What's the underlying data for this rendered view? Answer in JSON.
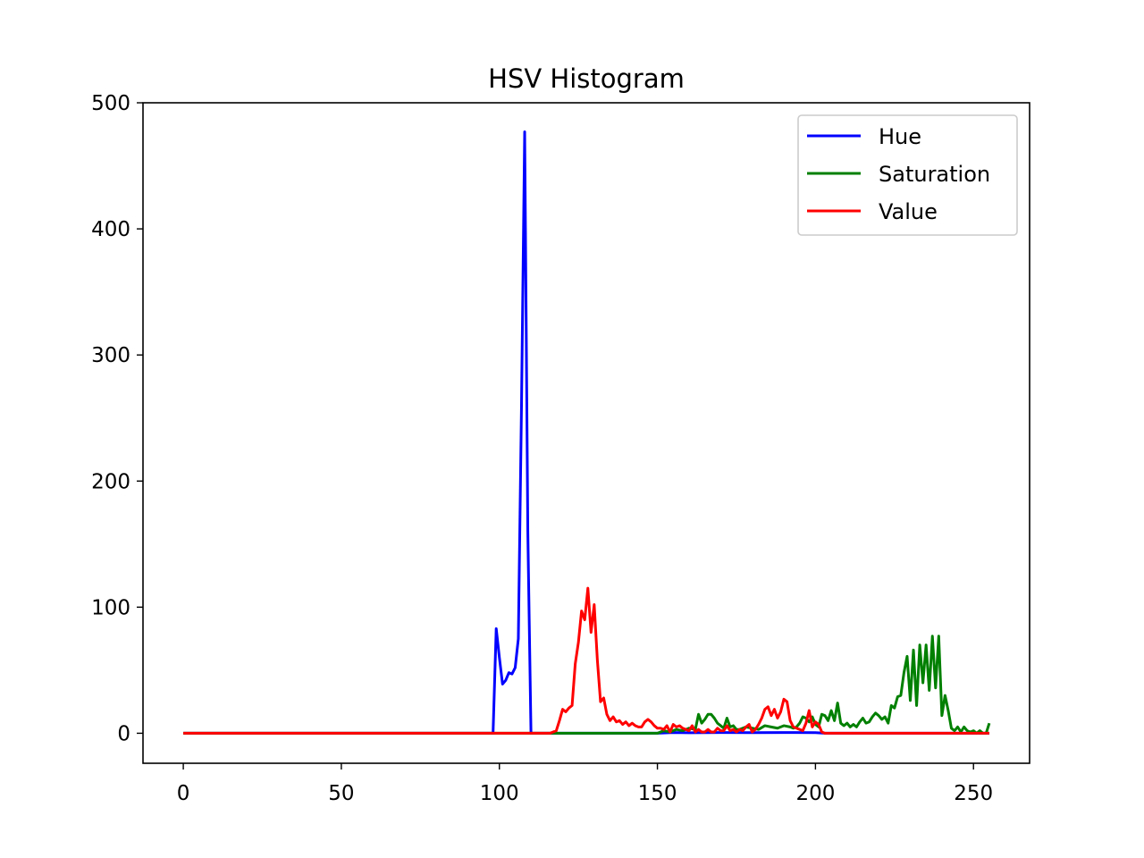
{
  "chart_data": {
    "type": "line",
    "title": "HSV Histogram",
    "xlabel": "",
    "ylabel": "",
    "xlim": [
      -12.75,
      267.75
    ],
    "ylim": [
      -23.8,
      500
    ],
    "xticks": [
      0,
      50,
      100,
      150,
      200,
      250
    ],
    "yticks": [
      0,
      100,
      200,
      300,
      400,
      500
    ],
    "grid": false,
    "legend_position": "top-right",
    "series": [
      {
        "name": "Hue",
        "color": "#0000ff",
        "points": [
          [
            0,
            0
          ],
          [
            98,
            0
          ],
          [
            99,
            83
          ],
          [
            100,
            60
          ],
          [
            101,
            39
          ],
          [
            102,
            42
          ],
          [
            103,
            48
          ],
          [
            104,
            47
          ],
          [
            105,
            52
          ],
          [
            106,
            75
          ],
          [
            107,
            260
          ],
          [
            108,
            477
          ],
          [
            109,
            160
          ],
          [
            110,
            0
          ],
          [
            150,
            0
          ],
          [
            155,
            0.6
          ],
          [
            160,
            0.4
          ],
          [
            170,
            0.6
          ],
          [
            180,
            0.5
          ],
          [
            190,
            0.6
          ],
          [
            200,
            0.5
          ],
          [
            203,
            0
          ],
          [
            255,
            0
          ]
        ]
      },
      {
        "name": "Saturation",
        "color": "#008000",
        "points": [
          [
            0,
            0
          ],
          [
            150,
            0
          ],
          [
            152,
            2
          ],
          [
            154,
            1
          ],
          [
            156,
            3
          ],
          [
            158,
            2
          ],
          [
            160,
            4
          ],
          [
            162,
            3
          ],
          [
            163,
            15
          ],
          [
            164,
            8
          ],
          [
            165,
            11
          ],
          [
            166,
            15
          ],
          [
            167,
            15
          ],
          [
            168,
            12
          ],
          [
            169,
            8
          ],
          [
            170,
            6
          ],
          [
            171,
            4
          ],
          [
            172,
            12
          ],
          [
            173,
            5
          ],
          [
            174,
            6
          ],
          [
            175,
            3
          ],
          [
            176,
            3
          ],
          [
            178,
            5
          ],
          [
            180,
            4
          ],
          [
            182,
            3
          ],
          [
            184,
            6
          ],
          [
            186,
            5
          ],
          [
            188,
            4
          ],
          [
            190,
            6
          ],
          [
            192,
            5
          ],
          [
            193,
            4
          ],
          [
            194,
            5
          ],
          [
            195,
            8
          ],
          [
            196,
            13
          ],
          [
            197,
            12
          ],
          [
            198,
            9
          ],
          [
            199,
            13
          ],
          [
            200,
            7
          ],
          [
            201,
            5
          ],
          [
            202,
            15
          ],
          [
            203,
            14
          ],
          [
            204,
            10
          ],
          [
            205,
            18
          ],
          [
            206,
            10
          ],
          [
            207,
            24
          ],
          [
            208,
            8
          ],
          [
            209,
            6
          ],
          [
            210,
            8
          ],
          [
            211,
            5
          ],
          [
            212,
            7
          ],
          [
            213,
            5
          ],
          [
            214,
            9
          ],
          [
            215,
            12
          ],
          [
            216,
            8
          ],
          [
            217,
            9
          ],
          [
            218,
            13
          ],
          [
            219,
            16
          ],
          [
            220,
            14
          ],
          [
            221,
            11
          ],
          [
            222,
            13
          ],
          [
            223,
            8
          ],
          [
            224,
            22
          ],
          [
            225,
            20
          ],
          [
            226,
            29
          ],
          [
            227,
            30
          ],
          [
            228,
            48
          ],
          [
            229,
            61
          ],
          [
            230,
            26
          ],
          [
            231,
            66
          ],
          [
            232,
            22
          ],
          [
            233,
            70
          ],
          [
            234,
            40
          ],
          [
            235,
            70
          ],
          [
            236,
            34
          ],
          [
            237,
            77
          ],
          [
            238,
            36
          ],
          [
            239,
            77
          ],
          [
            240,
            14
          ],
          [
            241,
            30
          ],
          [
            242,
            18
          ],
          [
            243,
            4
          ],
          [
            244,
            2
          ],
          [
            245,
            5
          ],
          [
            246,
            1
          ],
          [
            247,
            5
          ],
          [
            248,
            2
          ],
          [
            249,
            1
          ],
          [
            250,
            2
          ],
          [
            251,
            0
          ],
          [
            252,
            2
          ],
          [
            253,
            0
          ],
          [
            254,
            0
          ],
          [
            255,
            8
          ]
        ]
      },
      {
        "name": "Value",
        "color": "#ff0000",
        "points": [
          [
            0,
            0
          ],
          [
            116,
            0
          ],
          [
            118,
            2
          ],
          [
            119,
            10
          ],
          [
            120,
            19
          ],
          [
            121,
            17
          ],
          [
            122,
            20
          ],
          [
            123,
            22
          ],
          [
            124,
            55
          ],
          [
            125,
            72
          ],
          [
            126,
            97
          ],
          [
            127,
            90
          ],
          [
            128,
            115
          ],
          [
            129,
            80
          ],
          [
            130,
            102
          ],
          [
            131,
            58
          ],
          [
            132,
            25
          ],
          [
            133,
            28
          ],
          [
            134,
            15
          ],
          [
            135,
            10
          ],
          [
            136,
            13
          ],
          [
            137,
            9
          ],
          [
            138,
            10
          ],
          [
            139,
            7
          ],
          [
            140,
            9
          ],
          [
            141,
            6
          ],
          [
            142,
            8
          ],
          [
            143,
            6
          ],
          [
            144,
            5
          ],
          [
            145,
            5
          ],
          [
            146,
            9
          ],
          [
            147,
            11
          ],
          [
            148,
            9
          ],
          [
            149,
            6
          ],
          [
            150,
            4
          ],
          [
            151,
            4
          ],
          [
            152,
            3
          ],
          [
            153,
            6
          ],
          [
            154,
            1
          ],
          [
            155,
            7
          ],
          [
            156,
            5
          ],
          [
            157,
            6
          ],
          [
            158,
            4
          ],
          [
            159,
            3
          ],
          [
            160,
            2
          ],
          [
            161,
            6
          ],
          [
            162,
            1
          ],
          [
            163,
            3
          ],
          [
            164,
            1
          ],
          [
            165,
            1
          ],
          [
            166,
            3
          ],
          [
            167,
            1
          ],
          [
            168,
            1
          ],
          [
            169,
            4
          ],
          [
            170,
            2
          ],
          [
            171,
            2
          ],
          [
            172,
            6
          ],
          [
            173,
            2
          ],
          [
            174,
            3
          ],
          [
            175,
            1
          ],
          [
            176,
            3
          ],
          [
            177,
            2
          ],
          [
            178,
            5
          ],
          [
            179,
            7
          ],
          [
            180,
            1
          ],
          [
            181,
            3
          ],
          [
            182,
            7
          ],
          [
            183,
            12
          ],
          [
            184,
            19
          ],
          [
            185,
            21
          ],
          [
            186,
            14
          ],
          [
            187,
            19
          ],
          [
            188,
            12
          ],
          [
            189,
            17
          ],
          [
            190,
            27
          ],
          [
            191,
            25
          ],
          [
            192,
            10
          ],
          [
            193,
            5
          ],
          [
            194,
            4
          ],
          [
            195,
            3
          ],
          [
            196,
            2
          ],
          [
            197,
            8
          ],
          [
            198,
            18
          ],
          [
            199,
            5
          ],
          [
            200,
            9
          ],
          [
            201,
            7
          ],
          [
            202,
            1
          ],
          [
            203,
            0
          ],
          [
            255,
            0
          ]
        ]
      }
    ]
  }
}
